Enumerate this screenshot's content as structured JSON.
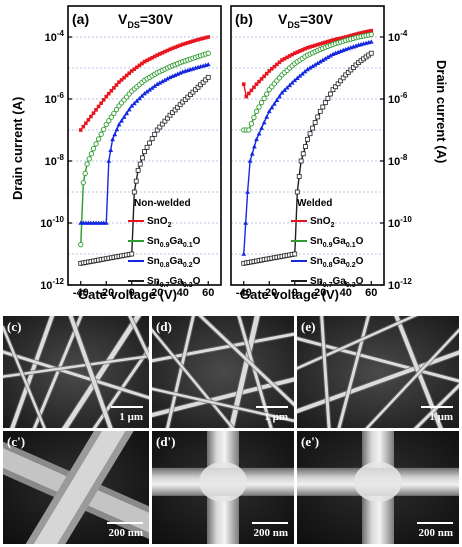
{
  "colors": {
    "SnO2": "#e8141e",
    "Ga01": "#2e9b2e",
    "Ga02": "#1428e0",
    "Ga03": "#202020"
  },
  "chart_data": [
    {
      "type": "line",
      "panel": "(a)",
      "annotation": "V_DS=30V",
      "xlabel": "Gate voltage (V)",
      "ylabel": "Drain current (A)",
      "legend_title": "Non-welded",
      "legend_position": "bottom-right",
      "y_scale": "log",
      "xlim": [
        -50,
        70
      ],
      "ylim": [
        1e-12,
        0.001
      ],
      "x_ticks": [
        "-40",
        "-20",
        "0",
        "20",
        "40",
        "60"
      ],
      "y_ticks": [
        "10^-12",
        "10^-10",
        "10^-8",
        "10^-6",
        "10^-4"
      ],
      "y_tick_side": "left",
      "grid": true,
      "series": [
        {
          "name": "SnO2",
          "color_key": "SnO2",
          "marker": "square-filled",
          "x": [
            -40,
            -30,
            -20,
            -10,
            0,
            10,
            20,
            30,
            40,
            50,
            60
          ],
          "y": [
            1e-07,
            3.5e-07,
            1.2e-06,
            3.5e-06,
            8e-06,
            1.6e-05,
            2.6e-05,
            4e-05,
            5.8e-05,
            7.8e-05,
            0.0001
          ]
        },
        {
          "name": "Sn0.9Ga0.1O",
          "color_key": "Ga01",
          "marker": "circle-open",
          "x": [
            -40,
            -38,
            -35,
            -30,
            -20,
            -10,
            0,
            10,
            20,
            30,
            40,
            50,
            60
          ],
          "y": [
            2e-11,
            2e-09,
            8e-09,
            2.5e-08,
            1.5e-07,
            6e-07,
            1.8e-06,
            4e-06,
            7e-06,
            1.1e-05,
            1.6e-05,
            2.2e-05,
            3e-05
          ]
        },
        {
          "name": "Sn0.8Ga0.2O",
          "color_key": "Ga02",
          "marker": "triangle-filled",
          "x": [
            -40,
            -20,
            -18,
            -15,
            -10,
            0,
            10,
            20,
            30,
            40,
            50,
            60
          ],
          "y": [
            1e-10,
            1e-10,
            1e-08,
            5e-08,
            1.5e-07,
            6e-07,
            1.5e-06,
            3e-06,
            5e-06,
            7.5e-06,
            1e-05,
            1.3e-05
          ]
        },
        {
          "name": "Sn0.7Ga0.3O",
          "color_key": "Ga03",
          "marker": "square-open",
          "x": [
            -40,
            0,
            2,
            5,
            10,
            20,
            30,
            40,
            50,
            60
          ],
          "y": [
            5e-12,
            1e-11,
            1e-09,
            5e-09,
            2e-08,
            1e-07,
            3e-07,
            8e-07,
            2e-06,
            5e-06
          ]
        }
      ],
      "legend": [
        {
          "label_main": "SnO",
          "sub1": "2",
          "mid": "",
          "sub2": "",
          "end": "",
          "color_key": "SnO2"
        },
        {
          "label_main": "Sn",
          "sub1": "0.9",
          "mid": "Ga",
          "sub2": "0.1",
          "end": "O",
          "color_key": "Ga01"
        },
        {
          "label_main": "Sn",
          "sub1": "0.8",
          "mid": "Ga",
          "sub2": "0.2",
          "end": "O",
          "color_key": "Ga02"
        },
        {
          "label_main": "Sn",
          "sub1": "0.7",
          "mid": "Ga",
          "sub2": "0.3",
          "end": "O",
          "color_key": "Ga03"
        }
      ]
    },
    {
      "type": "line",
      "panel": "(b)",
      "annotation": "V_DS=30V",
      "xlabel": "Gate voltage (V)",
      "ylabel": "Drain current (A)",
      "legend_title": "Welded",
      "legend_position": "bottom-right",
      "y_scale": "log",
      "xlim": [
        -50,
        70
      ],
      "ylim": [
        1e-12,
        0.001
      ],
      "x_ticks": [
        "-40",
        "-20",
        "0",
        "20",
        "40",
        "60"
      ],
      "y_ticks": [
        "10^-12",
        "10^-10",
        "10^-8",
        "10^-6",
        "10^-4"
      ],
      "y_tick_side": "right",
      "grid": true,
      "series": [
        {
          "name": "SnO2",
          "color_key": "SnO2",
          "marker": "square-filled",
          "x": [
            -40,
            -38,
            -30,
            -20,
            -10,
            0,
            10,
            20,
            30,
            40,
            50,
            60
          ],
          "y": [
            3e-06,
            1.2e-06,
            3e-06,
            8e-06,
            1.8e-05,
            3e-05,
            4.5e-05,
            6e-05,
            8e-05,
            0.0001,
            0.00013,
            0.00016
          ]
        },
        {
          "name": "Sn0.9Ga0.1O",
          "color_key": "Ga01",
          "marker": "circle-open",
          "x": [
            -40,
            -36,
            -30,
            -20,
            -10,
            0,
            10,
            20,
            30,
            40,
            50,
            60
          ],
          "y": [
            1e-07,
            1e-07,
            4e-07,
            2e-06,
            6e-06,
            1.4e-05,
            2.6e-05,
            4e-05,
            5.8e-05,
            7.8e-05,
            0.0001,
            0.00012
          ]
        },
        {
          "name": "Sn0.8Ga0.2O",
          "color_key": "Ga02",
          "marker": "triangle-filled",
          "x": [
            -40,
            -37,
            -35,
            -30,
            -20,
            -10,
            0,
            10,
            20,
            30,
            40,
            50,
            60
          ],
          "y": [
            1e-11,
            1e-09,
            1e-08,
            5e-08,
            4e-07,
            1.6e-06,
            4e-06,
            9e-06,
            1.6e-05,
            2.8e-05,
            4e-05,
            5.5e-05,
            7e-05
          ]
        },
        {
          "name": "Sn0.7Ga0.3O",
          "color_key": "Ga03",
          "marker": "square-open",
          "x": [
            -40,
            0,
            2,
            5,
            10,
            20,
            30,
            40,
            50,
            60
          ],
          "y": [
            5e-12,
            1e-11,
            1e-09,
            1e-08,
            5e-08,
            4e-07,
            2e-06,
            6e-06,
            1.5e-05,
            3e-05
          ]
        }
      ],
      "legend": [
        {
          "label_main": "SnO",
          "sub1": "2",
          "mid": "",
          "sub2": "",
          "end": "",
          "color_key": "SnO2"
        },
        {
          "label_main": "Sn",
          "sub1": "0.9",
          "mid": "Ga",
          "sub2": "0.1",
          "end": "O",
          "color_key": "Ga01"
        },
        {
          "label_main": "Sn",
          "sub1": "0.8",
          "mid": "Ga",
          "sub2": "0.2",
          "end": "O",
          "color_key": "Ga02"
        },
        {
          "label_main": "Sn",
          "sub1": "0.7",
          "mid": "Ga",
          "sub2": "0.3",
          "end": "O",
          "color_key": "Ga03"
        }
      ]
    }
  ],
  "micrographs": [
    {
      "label": "(c)",
      "scale": "1 μm",
      "kind": "network"
    },
    {
      "label": "(d)",
      "scale": "1 μm",
      "kind": "network"
    },
    {
      "label": "(e)",
      "scale": "1 μm",
      "kind": "network"
    },
    {
      "label": "(c')",
      "scale": "200 nm",
      "kind": "cross"
    },
    {
      "label": "(d')",
      "scale": "200 nm",
      "kind": "junction"
    },
    {
      "label": "(e')",
      "scale": "200 nm",
      "kind": "junction"
    }
  ]
}
